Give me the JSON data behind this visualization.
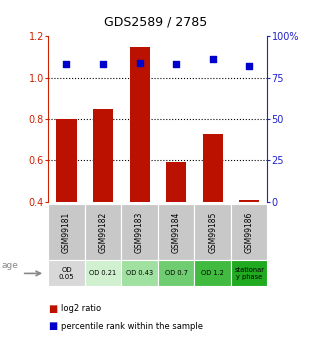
{
  "title": "GDS2589 / 2785",
  "samples": [
    "GSM99181",
    "GSM99182",
    "GSM99183",
    "GSM99184",
    "GSM99185",
    "GSM99186"
  ],
  "log2_ratio": [
    0.8,
    0.85,
    1.15,
    0.59,
    0.73,
    0.41
  ],
  "percentile_rank": [
    83,
    83,
    84,
    83,
    86,
    82
  ],
  "bar_bottom": 0.4,
  "ylim_left": [
    0.4,
    1.2
  ],
  "ylim_right": [
    0,
    100
  ],
  "yticks_left": [
    0.4,
    0.6,
    0.8,
    1.0,
    1.2
  ],
  "yticks_right": [
    0,
    25,
    50,
    75,
    100
  ],
  "ytick_labels_right": [
    "0",
    "25",
    "50",
    "75",
    "100%"
  ],
  "hlines": [
    0.6,
    0.8,
    1.0
  ],
  "bar_color": "#bb1100",
  "dot_color": "#0000cc",
  "bar_width": 0.55,
  "age_labels": [
    "OD\n0.05",
    "OD 0.21",
    "OD 0.43",
    "OD 0.7",
    "OD 1.2",
    "stationar\ny phase"
  ],
  "age_bg_colors": [
    "#d8d8d8",
    "#d0f0d0",
    "#a0e0a0",
    "#70cc70",
    "#40bb40",
    "#20aa20"
  ],
  "sample_bg_color": "#c8c8c8",
  "legend_bar_label": "log2 ratio",
  "legend_dot_label": "percentile rank within the sample",
  "left_axis_color": "#cc2200",
  "right_axis_color": "#2222cc",
  "title_fontsize": 9
}
